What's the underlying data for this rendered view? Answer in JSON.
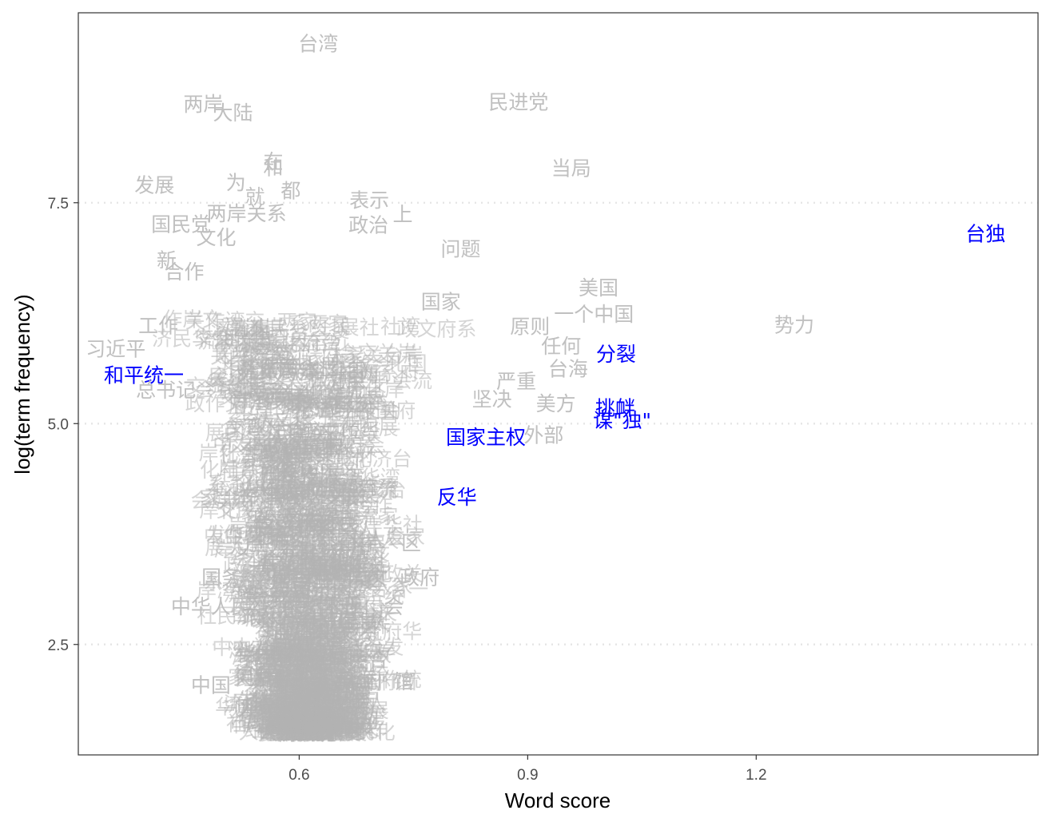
{
  "chart_data": {
    "type": "scatter",
    "title": "",
    "xlabel": "Word score",
    "ylabel": "log(term frequency)",
    "xlim": [
      0.31,
      1.57
    ],
    "ylim": [
      1.25,
      9.65
    ],
    "x_ticks": [
      0.6,
      0.9,
      1.2
    ],
    "x_tick_labels": [
      "0.6",
      "0.9",
      "1.2"
    ],
    "y_ticks": [
      2.5,
      5.0,
      7.5
    ],
    "y_tick_labels": [
      "2.5",
      "5.0",
      "7.5"
    ],
    "grid": "dotted horizontal",
    "colors": {
      "background_words": "#c0c0c0",
      "highlight_words": "#0000ff",
      "dense_cloud": "#b3b3b3",
      "panel_border": "#333333"
    },
    "points": [
      {
        "label": "台湾",
        "x": 0.625,
        "y": 9.3
      },
      {
        "label": "两岸",
        "x": 0.474,
        "y": 8.62
      },
      {
        "label": "大陆",
        "x": 0.513,
        "y": 8.52
      },
      {
        "label": "民进党",
        "x": 0.888,
        "y": 8.64
      },
      {
        "label": "当局",
        "x": 0.957,
        "y": 7.89
      },
      {
        "label": "在",
        "x": 0.566,
        "y": 7.97
      },
      {
        "label": "和",
        "x": 0.566,
        "y": 7.9
      },
      {
        "label": "发展",
        "x": 0.41,
        "y": 7.7
      },
      {
        "label": "为",
        "x": 0.517,
        "y": 7.73
      },
      {
        "label": "都",
        "x": 0.589,
        "y": 7.64
      },
      {
        "label": "就",
        "x": 0.542,
        "y": 7.57
      },
      {
        "label": "表示",
        "x": 0.692,
        "y": 7.53
      },
      {
        "label": "国民党",
        "x": 0.445,
        "y": 7.26
      },
      {
        "label": "两岸关系",
        "x": 0.531,
        "y": 7.38
      },
      {
        "label": "政治",
        "x": 0.691,
        "y": 7.25
      },
      {
        "label": "上",
        "x": 0.736,
        "y": 7.37
      },
      {
        "label": "台独",
        "x": 1.501,
        "y": 7.15
      },
      {
        "label": "问题",
        "x": 0.812,
        "y": 6.98
      },
      {
        "label": "新",
        "x": 0.426,
        "y": 6.85
      },
      {
        "label": "合作",
        "x": 0.449,
        "y": 6.72
      },
      {
        "label": "文化",
        "x": 0.491,
        "y": 7.11
      },
      {
        "label": "美国",
        "x": 0.993,
        "y": 6.54
      },
      {
        "label": "国家",
        "x": 0.786,
        "y": 6.38
      },
      {
        "label": "一个中国",
        "x": 0.987,
        "y": 6.24
      },
      {
        "label": "势力",
        "x": 1.25,
        "y": 6.12
      },
      {
        "label": "工作",
        "x": 0.415,
        "y": 6.11
      },
      {
        "label": "习近平",
        "x": 0.359,
        "y": 5.85
      },
      {
        "label": "原则",
        "x": 0.903,
        "y": 6.1
      },
      {
        "label": "任何",
        "x": 0.944,
        "y": 5.88
      },
      {
        "label": "分裂",
        "x": 1.016,
        "y": 5.79
      },
      {
        "label": "和平统一",
        "x": 0.396,
        "y": 5.55
      },
      {
        "label": "台海",
        "x": 0.953,
        "y": 5.62
      },
      {
        "label": "严重",
        "x": 0.885,
        "y": 5.48
      },
      {
        "label": "总书记",
        "x": 0.425,
        "y": 5.38
      },
      {
        "label": "坚决",
        "x": 0.853,
        "y": 5.28
      },
      {
        "label": "美方",
        "x": 0.937,
        "y": 5.23
      },
      {
        "label": "挑衅",
        "x": 1.015,
        "y": 5.18
      },
      {
        "label": "谋\"独\"",
        "x": 1.024,
        "y": 5.04
      },
      {
        "label": "外部",
        "x": 0.921,
        "y": 4.87
      },
      {
        "label": "国家主权",
        "x": 0.845,
        "y": 4.85
      },
      {
        "label": "反华",
        "x": 0.807,
        "y": 4.17
      },
      {
        "label": "区",
        "x": 0.747,
        "y": 3.65
      },
      {
        "label": "政府",
        "x": 0.758,
        "y": 3.26
      },
      {
        "label": "国务院",
        "x": 0.511,
        "y": 3.26
      },
      {
        "label": "中华人民",
        "x": 0.484,
        "y": 2.93
      },
      {
        "label": "会",
        "x": 0.724,
        "y": 2.93
      },
      {
        "label": "馆",
        "x": 0.737,
        "y": 2.08
      },
      {
        "label": "中国",
        "x": 0.484,
        "y": 2.04
      }
    ],
    "highlighted": [
      "台独",
      "分裂",
      "和平统一",
      "挑衅",
      "谋\"独\"",
      "国家主权",
      "反华"
    ]
  }
}
